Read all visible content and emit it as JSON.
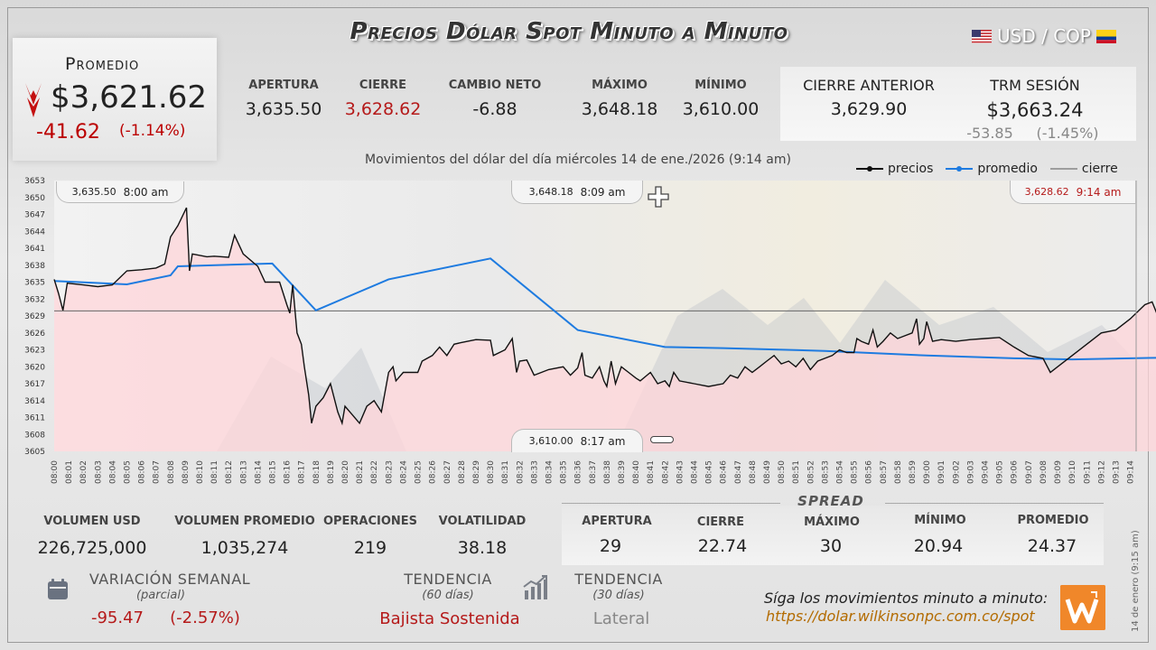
{
  "header": {
    "title": "Precios Dólar Spot Minuto a Minuto",
    "pair": "USD / COP"
  },
  "promedio": {
    "label": "Promedio",
    "value": "$3,621.62",
    "change": "-41.62",
    "change_pct": "(-1.14%)"
  },
  "stats_top": [
    {
      "label": "APERTURA",
      "value": "3,635.50",
      "tone": "normal"
    },
    {
      "label": "CIERRE",
      "value": "3,628.62",
      "tone": "red"
    },
    {
      "label": "CAMBIO NETO",
      "value": "-6.88",
      "tone": "normal"
    },
    {
      "label": "MÁXIMO",
      "value": "3,648.18",
      "tone": "normal"
    },
    {
      "label": "MÍNIMO",
      "value": "3,610.00",
      "tone": "normal"
    }
  ],
  "cierre_anterior": {
    "label": "CIERRE ANTERIOR",
    "value": "3,629.90"
  },
  "trm": {
    "label": "TRM SESIÓN",
    "value": "$3,663.24",
    "change": "-53.85",
    "change_pct": "(-1.45%)"
  },
  "chart_subtitle": "Movimientos del dólar del día miércoles 14 de ene./2026 (9:14 am)",
  "callouts": {
    "open": {
      "price": "3,635.50",
      "time": "8:00 am"
    },
    "max": {
      "price": "3,648.18",
      "time": "8:09 am"
    },
    "close": {
      "price": "3,628.62",
      "time": "9:14 am"
    },
    "min": {
      "price": "3,610.00",
      "time": "8:17 am"
    }
  },
  "chart_data": {
    "type": "line",
    "ylim": [
      3605,
      3653
    ],
    "yticks": [
      3653,
      3650,
      3647,
      3644,
      3641,
      3638,
      3635,
      3632,
      3629,
      3626,
      3623,
      3620,
      3617,
      3614,
      3611,
      3608,
      3605
    ],
    "x_labels": [
      "08:00",
      "08:01",
      "08:02",
      "08:03",
      "08:04",
      "08:05",
      "08:06",
      "08:07",
      "08:08",
      "08:09",
      "08:10",
      "08:11",
      "08:12",
      "08:13",
      "08:14",
      "08:15",
      "08:16",
      "08:17",
      "08:18",
      "08:19",
      "08:20",
      "08:21",
      "08:22",
      "08:23",
      "08:24",
      "08:25",
      "08:26",
      "08:27",
      "08:28",
      "08:29",
      "08:30",
      "08:31",
      "08:32",
      "08:33",
      "08:34",
      "08:35",
      "08:36",
      "08:37",
      "08:38",
      "08:39",
      "08:40",
      "08:41",
      "08:42",
      "08:43",
      "08:44",
      "08:45",
      "08:46",
      "08:47",
      "08:48",
      "08:49",
      "08:50",
      "08:51",
      "08:52",
      "08:53",
      "08:54",
      "08:55",
      "08:56",
      "08:57",
      "08:58",
      "08:59",
      "09:00",
      "09:01",
      "09:02",
      "09:03",
      "09:04",
      "09:05",
      "09:06",
      "09:07",
      "09:08",
      "09:09",
      "09:10",
      "09:11",
      "09:12",
      "09:13",
      "09:14"
    ],
    "legend": [
      "precios",
      "promedio",
      "cierre"
    ],
    "legend_position": "top-right",
    "series": [
      {
        "name": "precios",
        "color": "#111111",
        "points": [
          [
            0,
            3635.5
          ],
          [
            0.3,
            3633
          ],
          [
            0.6,
            3630
          ],
          [
            0.9,
            3634.8
          ],
          [
            2,
            3634.5
          ],
          [
            3,
            3634.2
          ],
          [
            4,
            3634.5
          ],
          [
            5,
            3637
          ],
          [
            6,
            3637.2
          ],
          [
            7,
            3637.5
          ],
          [
            7.6,
            3638.2
          ],
          [
            8,
            3643
          ],
          [
            8.5,
            3645
          ],
          [
            9.1,
            3648.18
          ],
          [
            9.3,
            3637
          ],
          [
            9.5,
            3640
          ],
          [
            10.5,
            3639.5
          ],
          [
            11,
            3639.6
          ],
          [
            12,
            3639.4
          ],
          [
            12.4,
            3643.3
          ],
          [
            13,
            3640
          ],
          [
            14,
            3637.8
          ],
          [
            14.5,
            3635
          ],
          [
            15.5,
            3635
          ],
          [
            16,
            3631
          ],
          [
            16.2,
            3629.5
          ],
          [
            16.4,
            3634.5
          ],
          [
            16.7,
            3626
          ],
          [
            17,
            3624
          ],
          [
            17.2,
            3620
          ],
          [
            17.5,
            3615
          ],
          [
            17.7,
            3610
          ],
          [
            18,
            3613
          ],
          [
            18.5,
            3614.5
          ],
          [
            19,
            3617
          ],
          [
            19.5,
            3612
          ],
          [
            19.8,
            3610
          ],
          [
            20,
            3613
          ],
          [
            20.5,
            3611.5
          ],
          [
            21,
            3610
          ],
          [
            21.5,
            3613
          ],
          [
            22,
            3614
          ],
          [
            22.5,
            3612
          ],
          [
            23,
            3619
          ],
          [
            23.3,
            3620
          ],
          [
            23.5,
            3617.5
          ],
          [
            24,
            3619
          ],
          [
            25,
            3619
          ],
          [
            25.3,
            3621
          ],
          [
            26,
            3622
          ],
          [
            26.5,
            3623.5
          ],
          [
            27,
            3622
          ],
          [
            27.5,
            3624
          ],
          [
            28,
            3624.3
          ],
          [
            29,
            3624.8
          ],
          [
            30,
            3624.7
          ],
          [
            30.2,
            3622
          ],
          [
            31,
            3623
          ],
          [
            31.5,
            3625
          ],
          [
            31.8,
            3619
          ],
          [
            32,
            3621
          ],
          [
            32.5,
            3621.2
          ],
          [
            33,
            3618.5
          ],
          [
            34,
            3619.5
          ],
          [
            35,
            3620
          ],
          [
            35.5,
            3618.5
          ],
          [
            36,
            3619.8
          ],
          [
            36.3,
            3622.5
          ],
          [
            36.5,
            3618.5
          ],
          [
            37,
            3618
          ],
          [
            37.5,
            3620
          ],
          [
            37.8,
            3617.5
          ],
          [
            38,
            3616.5
          ],
          [
            38.3,
            3621
          ],
          [
            38.6,
            3617
          ],
          [
            39,
            3620
          ],
          [
            39.5,
            3619
          ],
          [
            40,
            3618
          ],
          [
            40.3,
            3617.5
          ],
          [
            41,
            3619
          ],
          [
            41.5,
            3617
          ],
          [
            42,
            3617.5
          ],
          [
            42.3,
            3616.5
          ],
          [
            42.6,
            3619
          ],
          [
            43,
            3617.5
          ],
          [
            44,
            3617
          ],
          [
            45,
            3616.5
          ],
          [
            46,
            3617
          ],
          [
            46.5,
            3618.5
          ],
          [
            47,
            3618
          ],
          [
            47.5,
            3620
          ],
          [
            48,
            3619
          ],
          [
            48.5,
            3620
          ],
          [
            49,
            3621
          ],
          [
            49.5,
            3622
          ],
          [
            50,
            3620.5
          ],
          [
            50.5,
            3621
          ],
          [
            51,
            3620
          ],
          [
            51.5,
            3621.5
          ],
          [
            52,
            3619.5
          ],
          [
            52.5,
            3621
          ],
          [
            53,
            3621.5
          ],
          [
            53.5,
            3622
          ],
          [
            54,
            3623
          ],
          [
            54.5,
            3622.5
          ],
          [
            55,
            3622.5
          ],
          [
            55.2,
            3625
          ],
          [
            55.5,
            3624.5
          ],
          [
            56,
            3624
          ],
          [
            56.3,
            3626.5
          ],
          [
            56.6,
            3623.5
          ],
          [
            57,
            3624.5
          ],
          [
            57.5,
            3626
          ],
          [
            58,
            3625
          ],
          [
            58.5,
            3625.5
          ],
          [
            59,
            3626
          ],
          [
            59.3,
            3628.5
          ],
          [
            59.5,
            3624
          ],
          [
            59.8,
            3625
          ],
          [
            60,
            3628
          ],
          [
            60.4,
            3624.5
          ],
          [
            61,
            3624.8
          ],
          [
            62,
            3624.5
          ],
          [
            63,
            3624.8
          ],
          [
            64,
            3625
          ],
          [
            65,
            3625.2
          ],
          [
            66,
            3623.5
          ],
          [
            67,
            3622
          ],
          [
            68,
            3621.5
          ],
          [
            68.5,
            3619
          ],
          [
            69,
            3620
          ],
          [
            70,
            3622
          ],
          [
            71,
            3624
          ],
          [
            72,
            3626
          ],
          [
            73,
            3626.5
          ],
          [
            74,
            3628.5
          ],
          [
            75,
            3631
          ],
          [
            75.5,
            3631.5
          ],
          [
            76,
            3628.3
          ],
          [
            76.6,
            3628.62
          ]
        ]
      },
      {
        "name": "promedio",
        "color": "#1e7be0",
        "points": [
          [
            0,
            3635.2
          ],
          [
            5,
            3634.6
          ],
          [
            8,
            3636.2
          ],
          [
            8.5,
            3637.8
          ],
          [
            15,
            3638.3
          ],
          [
            18,
            3630
          ],
          [
            23,
            3635.5
          ],
          [
            30,
            3639.2
          ],
          [
            36,
            3626.5
          ],
          [
            42,
            3623.5
          ],
          [
            46,
            3623.3
          ],
          [
            53,
            3622.8
          ],
          [
            60,
            3622
          ],
          [
            66,
            3621.5
          ],
          [
            70,
            3621.3
          ],
          [
            76.6,
            3621.62
          ]
        ]
      },
      {
        "name": "cierre",
        "color": "#555555",
        "value": 3629.9
      }
    ]
  },
  "bottom_stats": [
    {
      "label": "VOLUMEN USD",
      "value": "226,725,000"
    },
    {
      "label": "VOLUMEN PROMEDIO",
      "value": "1,035,274"
    },
    {
      "label": "OPERACIONES",
      "value": "219"
    },
    {
      "label": "VOLATILIDAD",
      "value": "38.18"
    }
  ],
  "spread": {
    "title": "SPREAD",
    "items": [
      {
        "label": "APERTURA",
        "value": "29"
      },
      {
        "label": "CIERRE",
        "value": "22.74"
      },
      {
        "label": "MÁXIMO",
        "value": "30"
      },
      {
        "label": "MÍNIMO",
        "value": "20.94"
      },
      {
        "label": "PROMEDIO",
        "value": "24.37"
      }
    ]
  },
  "variacion": {
    "label": "VARIACIÓN SEMANAL",
    "sub": "(parcial)",
    "value": "-95.47",
    "pct": "(-2.57%)"
  },
  "tendencia60": {
    "label": "TENDENCIA",
    "sub": "(60 días)",
    "value": "Bajista Sostenida"
  },
  "tendencia30": {
    "label": "TENDENCIA",
    "sub": "(30 días)",
    "value": "Lateral"
  },
  "footer": {
    "text": "Síga los movimientos minuto a minuto:",
    "link": "https://dolar.wilkinsonpc.com.co/spot",
    "date_vertical": "14 de enero (9:15 am)"
  },
  "icons": [
    "calendar-icon",
    "bar-chart-up-icon",
    "down-arrow-icon",
    "crosshair-icon",
    "wilkinson-logo-icon"
  ]
}
